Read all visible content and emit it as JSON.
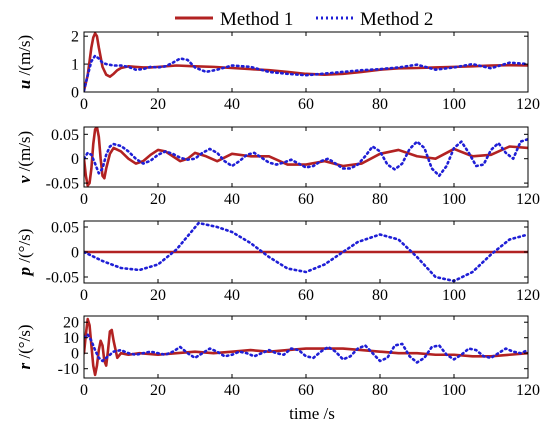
{
  "chart_data": {
    "type": "line",
    "legend": {
      "placement": "top",
      "entries": [
        {
          "name": "Method 1",
          "color": "#b22222",
          "style": "solid"
        },
        {
          "name": "Method 2",
          "color": "#1f1fd6",
          "style": "dotted"
        }
      ]
    },
    "xlabel": "time /s",
    "xlim": [
      0,
      120
    ],
    "xticks": [
      0,
      20,
      40,
      60,
      80,
      100,
      120
    ],
    "subplots": [
      {
        "var": "u",
        "unit": "/(m/s)",
        "ylim": [
          0,
          2.15
        ],
        "yticks": [
          0,
          1,
          2
        ],
        "series": [
          {
            "name": "Method 1",
            "x": [
              0,
              1,
              2,
              2.5,
              3,
              3.5,
              4,
              5,
              6,
              7,
              8,
              9,
              10,
              12,
              14,
              16,
              18,
              20,
              25,
              30,
              35,
              40,
              45,
              50,
              55,
              60,
              65,
              70,
              75,
              80,
              85,
              90,
              95,
              100,
              105,
              110,
              115,
              120
            ],
            "y": [
              0.05,
              0.6,
              1.6,
              1.95,
              2.1,
              2.0,
              1.6,
              0.9,
              0.62,
              0.55,
              0.65,
              0.78,
              0.86,
              0.92,
              0.9,
              0.88,
              0.88,
              0.9,
              0.95,
              0.92,
              0.9,
              0.86,
              0.82,
              0.78,
              0.72,
              0.65,
              0.62,
              0.65,
              0.72,
              0.8,
              0.85,
              0.86,
              0.88,
              0.9,
              0.92,
              0.95,
              0.96,
              0.95
            ]
          },
          {
            "name": "Method 2",
            "x": [
              0,
              1,
              2,
              3,
              4,
              5,
              6,
              8,
              10,
              12,
              14,
              16,
              18,
              20,
              22,
              24,
              26,
              28,
              30,
              33,
              36,
              40,
              45,
              50,
              55,
              60,
              65,
              70,
              75,
              80,
              85,
              90,
              95,
              100,
              105,
              110,
              115,
              120
            ],
            "y": [
              0.05,
              0.6,
              1.1,
              1.3,
              1.2,
              1.05,
              1.0,
              0.95,
              0.95,
              0.9,
              0.8,
              0.82,
              0.9,
              0.88,
              0.92,
              1.05,
              1.2,
              1.15,
              0.88,
              0.72,
              0.8,
              0.95,
              0.9,
              0.72,
              0.65,
              0.6,
              0.66,
              0.72,
              0.78,
              0.82,
              0.88,
              0.98,
              0.8,
              0.88,
              1.0,
              0.85,
              1.05,
              1.0
            ]
          }
        ]
      },
      {
        "var": "v",
        "unit": "/(m/s)",
        "ylim": [
          -0.058,
          0.065
        ],
        "yticks": [
          -0.05,
          0,
          0.05
        ],
        "series": [
          {
            "name": "Method 1",
            "x": [
              0,
              0.5,
              1,
              1.5,
              2,
              2.5,
              3,
              3.5,
              4,
              4.5,
              5,
              5.5,
              6,
              7,
              8,
              10,
              12,
              14,
              16,
              18,
              20,
              22,
              24,
              26,
              28,
              30,
              33,
              36,
              40,
              45,
              50,
              55,
              60,
              65,
              70,
              75,
              80,
              85,
              90,
              95,
              100,
              105,
              110,
              115,
              120
            ],
            "y": [
              0,
              -0.035,
              -0.055,
              -0.05,
              -0.02,
              0.03,
              0.06,
              0.065,
              0.045,
              0.0,
              -0.035,
              -0.04,
              -0.02,
              0.01,
              0.022,
              0.015,
              0.0,
              -0.01,
              -0.005,
              0.008,
              0.018,
              0.015,
              0.005,
              -0.005,
              0.0,
              0.012,
              0.005,
              -0.005,
              0.01,
              0.005,
              0.005,
              -0.012,
              -0.012,
              -0.005,
              -0.015,
              -0.01,
              0.01,
              0.018,
              0.005,
              0.0,
              0.02,
              0.005,
              0.008,
              0.025,
              0.022
            ]
          },
          {
            "name": "Method 2",
            "x": [
              0,
              1,
              2,
              3,
              4,
              5,
              6,
              7,
              8,
              10,
              12,
              14,
              16,
              18,
              20,
              22,
              24,
              26,
              28,
              30,
              32,
              34,
              36,
              38,
              40,
              42,
              44,
              46,
              48,
              50,
              52,
              54,
              56,
              58,
              60,
              62,
              64,
              66,
              68,
              70,
              72,
              74,
              76,
              78,
              80,
              82,
              84,
              86,
              88,
              90,
              92,
              94,
              96,
              98,
              100,
              102,
              104,
              106,
              108,
              110,
              112,
              114,
              116,
              118,
              120
            ],
            "y": [
              0,
              0.012,
              0.008,
              -0.01,
              -0.03,
              -0.02,
              0.008,
              0.025,
              0.03,
              0.026,
              0.015,
              0.0,
              -0.01,
              -0.004,
              0.008,
              0.015,
              0.01,
              0.002,
              -0.002,
              0.0,
              0.012,
              0.02,
              0.012,
              -0.005,
              -0.015,
              -0.005,
              0.008,
              0.012,
              0.002,
              -0.008,
              -0.012,
              -0.008,
              -0.002,
              -0.01,
              -0.018,
              -0.015,
              -0.005,
              0.0,
              -0.01,
              -0.02,
              -0.02,
              -0.012,
              0.005,
              0.025,
              0.015,
              -0.012,
              -0.022,
              -0.01,
              0.02,
              0.035,
              0.022,
              -0.02,
              -0.035,
              -0.015,
              0.022,
              0.035,
              0.012,
              -0.015,
              -0.012,
              0.018,
              0.032,
              0.012,
              0.0,
              0.035,
              0.04
            ]
          }
        ]
      },
      {
        "var": "p",
        "unit": "/(°/s)",
        "ylim": [
          -0.062,
          0.062
        ],
        "yticks": [
          -0.05,
          0,
          0.05
        ],
        "series": [
          {
            "name": "Method 1",
            "x": [
              0,
              120
            ],
            "y": [
              0,
              0
            ]
          },
          {
            "name": "Method 2",
            "x": [
              0,
              5,
              10,
              15,
              20,
              25,
              31,
              36,
              40,
              45,
              50,
              55,
              60,
              65,
              70,
              74,
              80,
              85,
              90,
              95,
              100,
              105,
              110,
              115,
              120
            ],
            "y": [
              0,
              -0.018,
              -0.032,
              -0.036,
              -0.025,
              0.005,
              0.058,
              0.05,
              0.04,
              0.018,
              -0.01,
              -0.033,
              -0.04,
              -0.025,
              0.0,
              0.02,
              0.035,
              0.025,
              -0.01,
              -0.05,
              -0.058,
              -0.04,
              -0.005,
              0.025,
              0.035
            ]
          }
        ]
      },
      {
        "var": "r",
        "unit": "/(°/s)",
        "ylim": [
          -16,
          24
        ],
        "yticks": [
          -10,
          0,
          10,
          20
        ],
        "series": [
          {
            "name": "Method 1",
            "x": [
              0,
              0.5,
              1,
              1.5,
              2,
              2.5,
              3,
              3.5,
              4,
              4.5,
              5,
              5.5,
              6,
              6.5,
              7,
              7.5,
              8,
              9,
              10,
              12,
              15,
              20,
              25,
              30,
              35,
              40,
              45,
              50,
              55,
              60,
              65,
              70,
              75,
              80,
              85,
              90,
              95,
              100,
              105,
              110,
              115,
              120
            ],
            "y": [
              0,
              12,
              22,
              18,
              5,
              -8,
              -14,
              -8,
              2,
              8,
              5,
              -5,
              -8,
              2,
              14,
              15,
              8,
              -3,
              0,
              -1,
              0,
              -1,
              0,
              1,
              0,
              1,
              2,
              1,
              2,
              3,
              3,
              3,
              2,
              1,
              0,
              0,
              -1,
              -1,
              -2,
              -2,
              -1,
              0
            ]
          },
          {
            "name": "Method 2",
            "x": [
              0,
              1,
              2,
              3,
              4,
              5,
              6,
              8,
              10,
              12,
              14,
              16,
              18,
              20,
              22,
              24,
              26,
              28,
              30,
              32,
              34,
              36,
              38,
              40,
              42,
              44,
              46,
              48,
              50,
              52,
              54,
              56,
              58,
              60,
              62,
              64,
              66,
              68,
              70,
              72,
              74,
              76,
              78,
              80,
              82,
              84,
              86,
              88,
              90,
              92,
              94,
              96,
              98,
              100,
              102,
              104,
              106,
              108,
              110,
              112,
              114,
              116,
              118,
              120
            ],
            "y": [
              10,
              12,
              8,
              2,
              -3,
              -5,
              -3,
              1,
              2,
              0,
              -1,
              0,
              1,
              0,
              -1,
              1,
              4,
              0,
              -3,
              0,
              3,
              1,
              -2,
              -1,
              1,
              0,
              -2,
              0,
              2,
              0,
              -1,
              3,
              2,
              -2,
              -3,
              1,
              4,
              1,
              -4,
              -2,
              3,
              5,
              0,
              -5,
              -3,
              5,
              6,
              -2,
              -6,
              -3,
              4,
              5,
              -1,
              -4,
              -1,
              3,
              2,
              -2,
              -3,
              0,
              3,
              1,
              0,
              2
            ]
          }
        ]
      }
    ]
  }
}
